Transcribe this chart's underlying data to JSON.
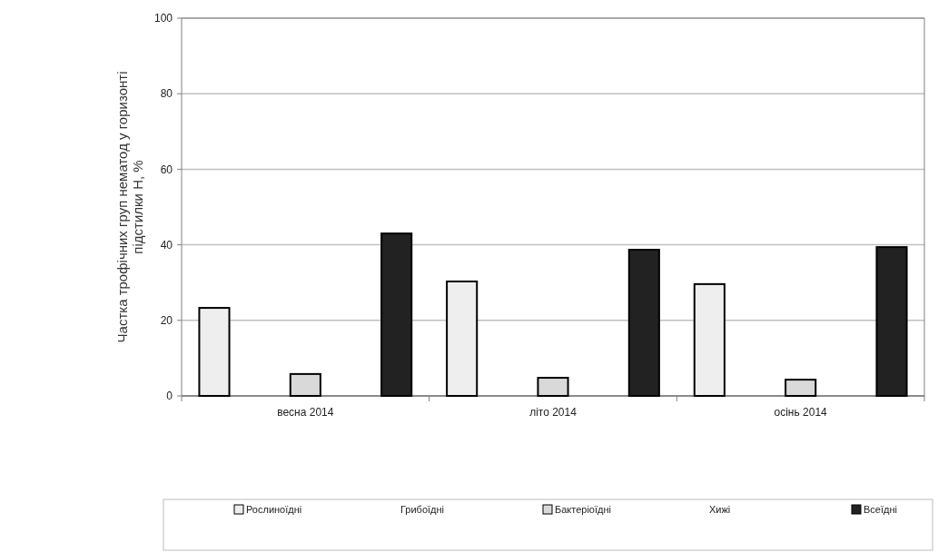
{
  "chart_data": {
    "type": "bar",
    "ylabel": "Частка трофічних груп нематод у горизонті підстилки Н, %",
    "categories": [
      "весна 2014",
      "літо 2014",
      "осінь 2014"
    ],
    "series": [
      {
        "name": "Рослиноїдні",
        "color": "#eeeeee",
        "values": [
          23.3,
          30.3,
          29.6
        ]
      },
      {
        "name": "Грибоїдні",
        "values": [
          null,
          null,
          null
        ]
      },
      {
        "name": "Бактеріоїдні",
        "color": "#d9d9d9",
        "values": [
          5.8,
          4.8,
          4.3
        ]
      },
      {
        "name": "Хижі",
        "values": [
          null,
          null,
          null
        ]
      },
      {
        "name": "Всеїдні",
        "color": "#222222",
        "values": [
          43,
          38.7,
          39.4
        ]
      }
    ],
    "ylim": [
      0,
      100
    ],
    "yticks": [
      0,
      20,
      40,
      60,
      80,
      100
    ],
    "grid": "y",
    "legend": "bottom"
  }
}
